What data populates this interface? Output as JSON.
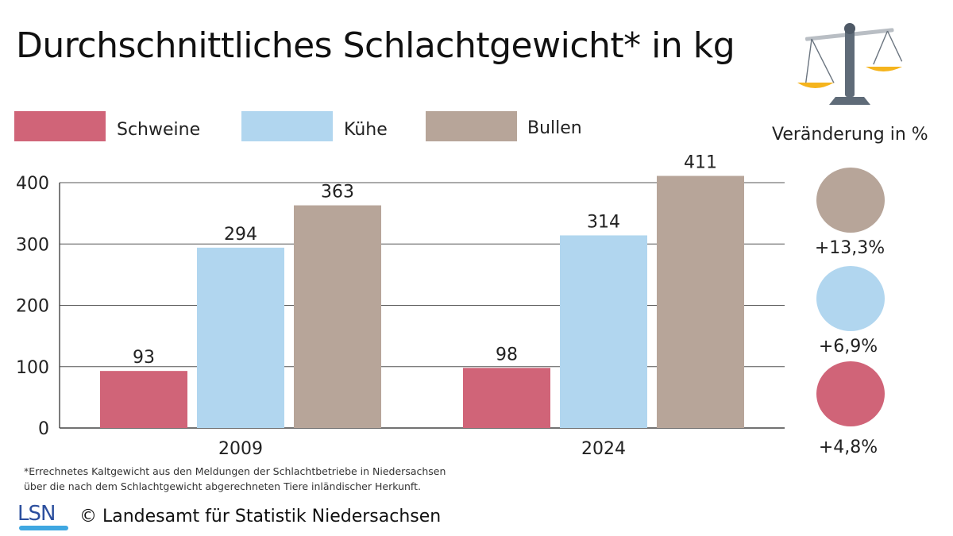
{
  "title": "Durchschnittliches Schlachtgewicht* in kg",
  "legend": [
    {
      "label": "Schweine",
      "color": "#d06478"
    },
    {
      "label": "Kühe",
      "color": "#b1d6ef"
    },
    {
      "label": "Bullen",
      "color": "#b7a599"
    }
  ],
  "change_title": "Veränderung in %",
  "changes": [
    {
      "series": "Bullen",
      "value": "+13,3%",
      "color": "#b7a599"
    },
    {
      "series": "Kühe",
      "value": "+6,9%",
      "color": "#b1d6ef"
    },
    {
      "series": "Schweine",
      "value": "+4,8%",
      "color": "#d06478"
    }
  ],
  "chart_data": {
    "type": "bar",
    "title": "Durchschnittliches Schlachtgewicht* in kg",
    "categories": [
      "2009",
      "2024"
    ],
    "series": [
      {
        "name": "Schweine",
        "values": [
          93,
          98
        ],
        "color": "#d06478"
      },
      {
        "name": "Kühe",
        "values": [
          294,
          314
        ],
        "color": "#b1d6ef"
      },
      {
        "name": "Bullen",
        "values": [
          363,
          411
        ],
        "color": "#b7a599"
      }
    ],
    "ylim": [
      0,
      400
    ],
    "yticks": [
      0,
      100,
      200,
      300,
      400
    ],
    "grid": true,
    "legend_position": "top"
  },
  "footnote": [
    "*Errechnetes Kaltgewicht aus den Meldungen der Schlachtbetriebe in Niedersachsen",
    "über die nach dem Schlachtgewicht abgerechneten Tiere inländischer Herkunft."
  ],
  "logo_text": "LSN",
  "copyright": "© Landesamt für Statistik Niedersachsen",
  "icon": "scale-icon"
}
